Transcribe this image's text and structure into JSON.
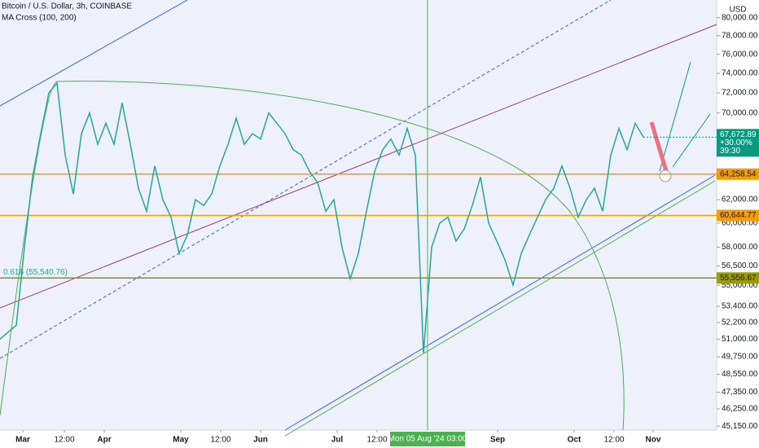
{
  "header": {
    "symbol": "Bitcoin / U.S. Dollar, 3h, COINBASE",
    "indicator": "MA Cross (100, 200)",
    "currency": "USD"
  },
  "chart_data": {
    "type": "line",
    "log": true,
    "color": "#26a69a",
    "xlim": [
      0,
      88
    ],
    "ylim": [
      44900,
      82000
    ],
    "values": [
      51000,
      51500,
      52000,
      58000,
      64000,
      68000,
      72000,
      73000,
      66000,
      62500,
      68000,
      70000,
      67000,
      69000,
      67000,
      71000,
      67000,
      63000,
      61000,
      65000,
      62000,
      60500,
      57500,
      59000,
      62000,
      61500,
      62500,
      65000,
      67000,
      69500,
      67000,
      68000,
      67500,
      70000,
      69000,
      68000,
      66500,
      66000,
      64500,
      63500,
      61000,
      62000,
      58000,
      55500,
      57500,
      61000,
      64500,
      66500,
      67500,
      66000,
      68500,
      66000,
      50000,
      58000,
      60000,
      60500,
      58500,
      59500,
      61500,
      64000,
      60000,
      58500,
      57000,
      55000,
      57500,
      59000,
      60500,
      62000,
      63000,
      65000,
      63000,
      60500,
      62000,
      63000,
      61000,
      66000,
      68500,
      66500,
      69000,
      67672.89
    ],
    "yticks": [
      {
        "value": 80000,
        "label": "80,000.00"
      },
      {
        "value": 78000,
        "label": "78,000.00"
      },
      {
        "value": 76000,
        "label": "76,000.00"
      },
      {
        "value": 74000,
        "label": "74,000.00"
      },
      {
        "value": 72000,
        "label": "72,000.00"
      },
      {
        "value": 70000,
        "label": "70,000.00"
      },
      {
        "value": 62000,
        "label": "62,000.00"
      },
      {
        "value": 60000,
        "label": "60,000.00"
      },
      {
        "value": 58000,
        "label": "58,000.00"
      },
      {
        "value": 56500,
        "label": "56,500.00"
      },
      {
        "value": 55000,
        "label": "55,000.00"
      },
      {
        "value": 53400,
        "label": "53,400.00"
      },
      {
        "value": 52200,
        "label": "52,200.00"
      },
      {
        "value": 51000,
        "label": "51,000.00"
      },
      {
        "value": 49750,
        "label": "49,750.00"
      },
      {
        "value": 48550,
        "label": "48,550.00"
      },
      {
        "value": 47350,
        "label": "47,350.00"
      },
      {
        "value": 46250,
        "label": "46,250.00"
      },
      {
        "value": 45150,
        "label": "45,150.00"
      }
    ],
    "xticks": [
      {
        "value": 2.8,
        "label": "Mar"
      },
      {
        "value": 7.9,
        "label": "12:00"
      },
      {
        "value": 12.8,
        "label": "Apr"
      },
      {
        "value": 22.2,
        "label": "May"
      },
      {
        "value": 27.1,
        "label": "12:00"
      },
      {
        "value": 32.0,
        "label": "Jun"
      },
      {
        "value": 41.4,
        "label": "Jul"
      },
      {
        "value": 46.3,
        "label": "12:00"
      },
      {
        "value": 61.1,
        "label": "Sep"
      },
      {
        "value": 70.5,
        "label": "Oct"
      },
      {
        "value": 75.4,
        "label": "12:00"
      },
      {
        "value": 80.2,
        "label": "Nov"
      }
    ],
    "crosshair": {
      "value": 52.5,
      "label": "Mon 05 Aug '24   03:00"
    },
    "last_price": {
      "label": "67,672.89",
      "change": "+30.00%",
      "countdown": "39:30"
    },
    "levels": [
      {
        "value": 64258.54,
        "label": "64,258.54",
        "color": "#f59d00"
      },
      {
        "value": 60644.77,
        "label": "60,644.77",
        "color": "#f59d00"
      },
      {
        "value": 55556.67,
        "label": "55,556.67",
        "color": "#9c9c00"
      }
    ],
    "fib": {
      "value": 55540.76,
      "label": "0.618 (55,540.76)"
    }
  }
}
